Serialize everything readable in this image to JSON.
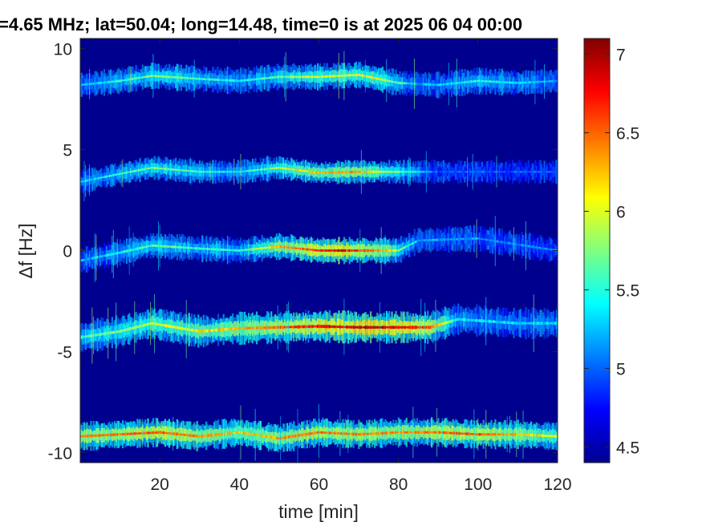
{
  "chart_data": {
    "type": "heatmap",
    "title": "=4.65 MHz;  lat=50.04; long=14.48, time=0 is at 2025 06 04 00:00",
    "xlabel": "time [min]",
    "ylabel": "Δf [Hz]",
    "xlim": [
      0,
      120
    ],
    "ylim": [
      -10.5,
      10.5
    ],
    "xticks": [
      20,
      40,
      60,
      80,
      100,
      120
    ],
    "xtick_labels": [
      "20",
      "40",
      "60",
      "80",
      "100",
      "120"
    ],
    "yticks": [
      -10,
      -5,
      0,
      5,
      10
    ],
    "ytick_labels": [
      "-10",
      "-5",
      "0",
      "5",
      "10"
    ],
    "colorbar": {
      "range": [
        4.4,
        7.1
      ],
      "ticks": [
        4.5,
        5,
        5.5,
        6,
        6.5,
        7
      ],
      "tick_labels": [
        "4.5",
        "5",
        "5.5",
        "6",
        "6.5",
        "7"
      ],
      "colormap": "jet"
    },
    "background_color": "#00008f",
    "bands": [
      {
        "center": [
          [
            0,
            8.2
          ],
          [
            10,
            8.4
          ],
          [
            18,
            8.65
          ],
          [
            30,
            8.5
          ],
          [
            40,
            8.4
          ],
          [
            50,
            8.6
          ],
          [
            60,
            8.6
          ],
          [
            70,
            8.7
          ],
          [
            80,
            8.3
          ],
          [
            90,
            8.2
          ],
          [
            100,
            8.4
          ],
          [
            110,
            8.3
          ],
          [
            120,
            8.4
          ]
        ],
        "intensity": [
          [
            0,
            5.2
          ],
          [
            20,
            5.8
          ],
          [
            40,
            5.4
          ],
          [
            60,
            6.0
          ],
          [
            75,
            6.1
          ],
          [
            85,
            5.2
          ],
          [
            100,
            5.5
          ],
          [
            120,
            5.2
          ]
        ],
        "width": 0.45
      },
      {
        "center": [
          [
            0,
            3.4
          ],
          [
            10,
            3.8
          ],
          [
            18,
            4.1
          ],
          [
            30,
            3.9
          ],
          [
            40,
            3.9
          ],
          [
            50,
            4.1
          ],
          [
            60,
            3.85
          ],
          [
            70,
            3.9
          ],
          [
            80,
            3.9
          ],
          [
            90,
            3.9
          ],
          [
            120,
            3.9
          ]
        ],
        "intensity": [
          [
            0,
            5.3
          ],
          [
            20,
            5.8
          ],
          [
            40,
            5.4
          ],
          [
            55,
            6.2
          ],
          [
            70,
            6.4
          ],
          [
            82,
            5.6
          ],
          [
            90,
            5.0
          ],
          [
            120,
            5.0
          ]
        ],
        "width": 0.4
      },
      {
        "center": [
          [
            0,
            -0.5
          ],
          [
            10,
            -0.1
          ],
          [
            18,
            0.25
          ],
          [
            30,
            0.1
          ],
          [
            40,
            0.0
          ],
          [
            50,
            0.2
          ],
          [
            60,
            0.0
          ],
          [
            70,
            0.0
          ],
          [
            80,
            0.0
          ],
          [
            85,
            0.5
          ],
          [
            100,
            0.6
          ],
          [
            110,
            0.3
          ],
          [
            120,
            0.0
          ]
        ],
        "intensity": [
          [
            0,
            5.2
          ],
          [
            20,
            5.7
          ],
          [
            40,
            5.5
          ],
          [
            50,
            6.3
          ],
          [
            65,
            6.9
          ],
          [
            78,
            6.2
          ],
          [
            85,
            5.2
          ],
          [
            120,
            5.1
          ]
        ],
        "width": 0.45
      },
      {
        "center": [
          [
            0,
            -4.3
          ],
          [
            10,
            -4.0
          ],
          [
            18,
            -3.6
          ],
          [
            30,
            -4.0
          ],
          [
            40,
            -3.85
          ],
          [
            50,
            -3.8
          ],
          [
            60,
            -3.75
          ],
          [
            70,
            -3.8
          ],
          [
            80,
            -3.8
          ],
          [
            88,
            -3.8
          ],
          [
            95,
            -3.4
          ],
          [
            110,
            -3.6
          ],
          [
            120,
            -3.6
          ]
        ],
        "intensity": [
          [
            0,
            5.6
          ],
          [
            20,
            6.0
          ],
          [
            40,
            6.3
          ],
          [
            60,
            6.8
          ],
          [
            75,
            7.0
          ],
          [
            88,
            6.6
          ],
          [
            95,
            5.4
          ],
          [
            120,
            5.3
          ]
        ],
        "width": 0.55
      },
      {
        "center": [
          [
            0,
            -9.2
          ],
          [
            10,
            -9.1
          ],
          [
            20,
            -9.0
          ],
          [
            30,
            -9.2
          ],
          [
            40,
            -9.0
          ],
          [
            50,
            -9.3
          ],
          [
            60,
            -9.0
          ],
          [
            70,
            -9.1
          ],
          [
            80,
            -9.0
          ],
          [
            90,
            -9.0
          ],
          [
            100,
            -9.1
          ],
          [
            110,
            -9.1
          ],
          [
            120,
            -9.2
          ]
        ],
        "intensity": [
          [
            0,
            6.4
          ],
          [
            20,
            6.6
          ],
          [
            40,
            6.2
          ],
          [
            60,
            6.5
          ],
          [
            80,
            6.4
          ],
          [
            100,
            6.6
          ],
          [
            120,
            6.0
          ]
        ],
        "width": 0.5
      }
    ]
  }
}
